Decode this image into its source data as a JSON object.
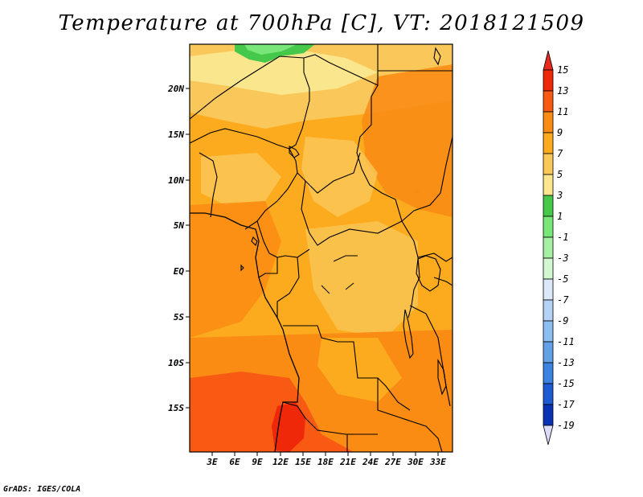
{
  "figure": {
    "title": "Temperature at 700hPa [C], VT: 2018121509",
    "credit": "GrADS: IGES/COLA"
  },
  "map": {
    "lat_labels": [
      "20N",
      "15N",
      "10N",
      "5N",
      "EQ",
      "5S",
      "10S",
      "15S"
    ],
    "lon_labels": [
      "3E",
      "6E",
      "9E",
      "12E",
      "15E",
      "18E",
      "21E",
      "24E",
      "27E",
      "30E",
      "33E"
    ],
    "lat_range": [
      -20,
      25
    ],
    "lon_range": [
      0,
      35
    ]
  },
  "colorbar": {
    "labels": [
      "15",
      "13",
      "11",
      "9",
      "7",
      "5",
      "3",
      "1",
      "-1",
      "-3",
      "-5",
      "-7",
      "-9",
      "-11",
      "-13",
      "-15",
      "-17",
      "-19"
    ],
    "colors": [
      "#f0280a",
      "#f85a14",
      "#fa8c14",
      "#fcaa1e",
      "#fac85a",
      "#fae68c",
      "#46c84a",
      "#78e678",
      "#a5f0a5",
      "#d2f8d2",
      "#dce8f8",
      "#b4d2f6",
      "#8cbef0",
      "#64a0e6",
      "#3c82e0",
      "#1e5ad2",
      "#0a32b4",
      "#0a0a64"
    ],
    "over_color": "#e6281e",
    "under_color": "#dcdcf8"
  }
}
